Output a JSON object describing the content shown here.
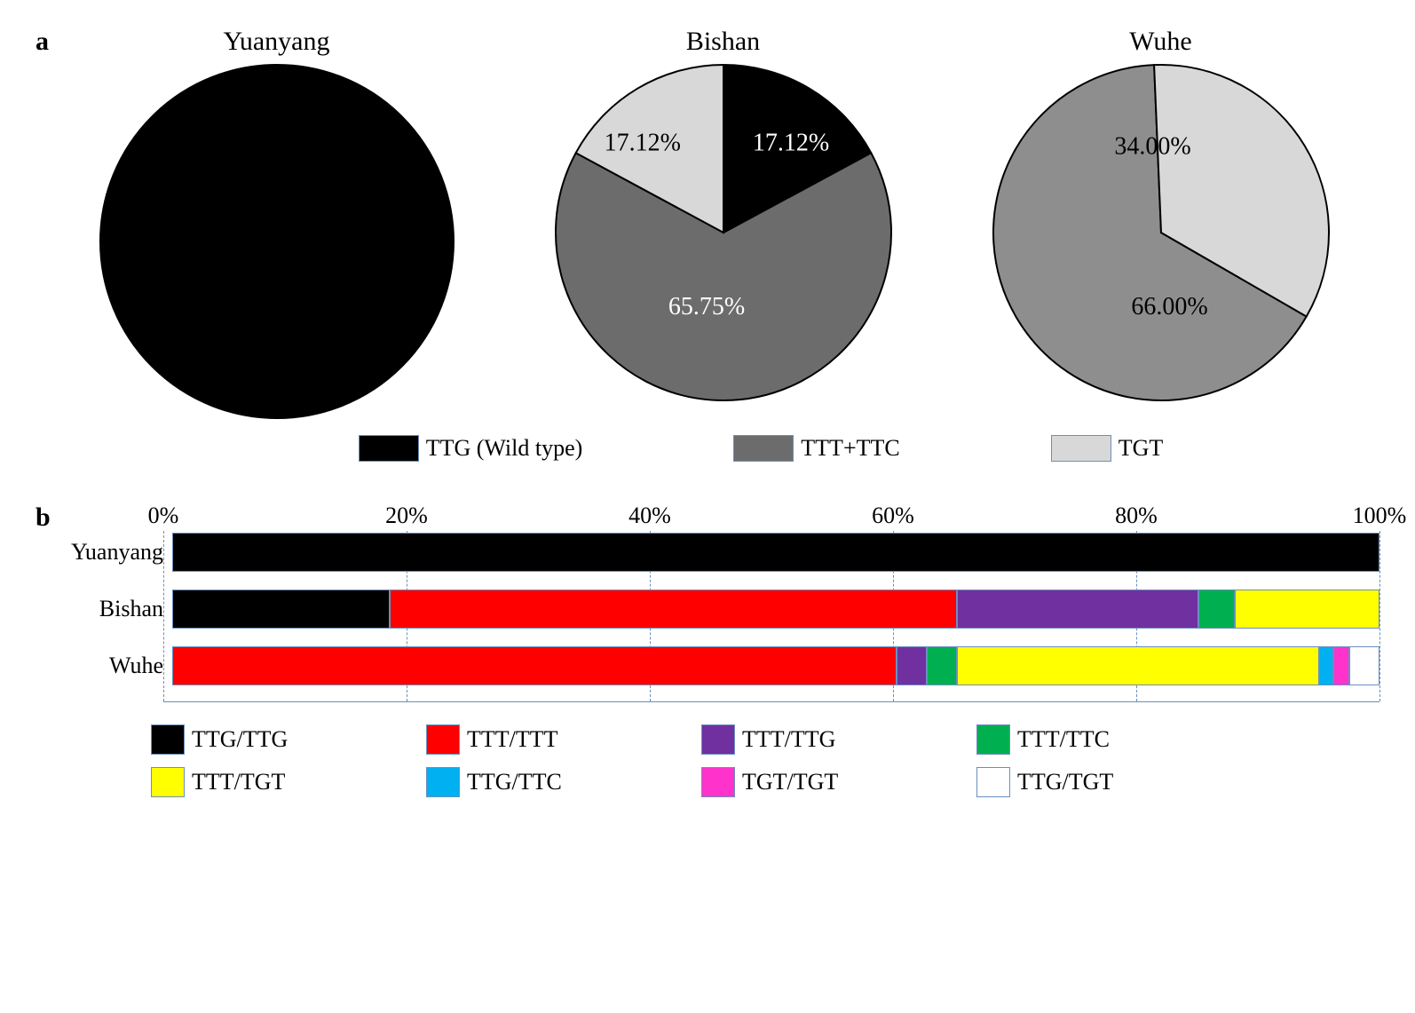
{
  "palette": {
    "stroke": "#6a8fbf"
  },
  "panelA": {
    "label": "a",
    "legend": [
      {
        "label": "TTG (Wild type)",
        "color": "#000000"
      },
      {
        "label": "TTT+TTC",
        "color": "#6c6c6c"
      },
      {
        "label": "TGT",
        "color": "#d8d8d8"
      }
    ],
    "pies": [
      {
        "title": "Yuanyang",
        "radius": 200,
        "slices": [
          {
            "value": 100,
            "color": "#000000",
            "label": null,
            "label_color": null
          }
        ]
      },
      {
        "title": "Bishan",
        "radius": 190,
        "slices": [
          {
            "value": 17.12,
            "color": "#000000",
            "label": "17.12%",
            "label_color": "#ffffff",
            "lx": 0.4,
            "ly": -0.52
          },
          {
            "value": 65.75,
            "color": "#6c6c6c",
            "label": "65.75%",
            "label_color": "#ffffff",
            "lx": -0.1,
            "ly": 0.45
          },
          {
            "value": 17.12,
            "color": "#d8d8d8",
            "label": "17.12%",
            "label_color": "#000000",
            "lx": -0.48,
            "ly": -0.52
          }
        ]
      },
      {
        "title": "Wuhe",
        "radius": 190,
        "slices": [
          {
            "value": 66.0,
            "color": "#8e8e8e",
            "label": "66.00%",
            "label_color": "#000000",
            "lx": 0.05,
            "ly": 0.45
          },
          {
            "value": 34.0,
            "color": "#d8d8d8",
            "label": "34.00%",
            "label_color": "#000000",
            "lx": -0.05,
            "ly": -0.5
          }
        ]
      }
    ],
    "startAngles": [
      -90,
      -90,
      30
    ],
    "label_fontsize": 28
  },
  "panelB": {
    "label": "b",
    "axis_ticks": [
      0,
      20,
      40,
      60,
      80,
      100
    ],
    "axis_suffix": "%",
    "tick_fontsize": 26,
    "grid_color": "#6a8fbf",
    "colors": {
      "TTG/TTG": "#000000",
      "TTT/TTT": "#ff0000",
      "TTT/TTG": "#7030a0",
      "TTT/TTC": "#00b050",
      "TTT/TGT": "#ffff00",
      "TTG/TTC": "#00b0f0",
      "TGT/TGT": "#ff33cc",
      "TTG/TGT": "#ffffff"
    },
    "legend_order": [
      "TTG/TTG",
      "TTT/TTT",
      "TTT/TTG",
      "TTT/TTC",
      "TTT/TGT",
      "TTG/TTC",
      "TGT/TGT",
      "TTG/TGT"
    ],
    "rows": [
      {
        "label": "Yuanyang",
        "segments": [
          {
            "key": "TTG/TTG",
            "value": 100
          }
        ]
      },
      {
        "label": "Bishan",
        "segments": [
          {
            "key": "TTG/TTG",
            "value": 18
          },
          {
            "key": "TTT/TTT",
            "value": 47
          },
          {
            "key": "TTT/TTG",
            "value": 20
          },
          {
            "key": "TTT/TTC",
            "value": 3
          },
          {
            "key": "TTT/TGT",
            "value": 12
          }
        ]
      },
      {
        "label": "Wuhe",
        "segments": [
          {
            "key": "TTT/TTT",
            "value": 60
          },
          {
            "key": "TTT/TTG",
            "value": 2.5
          },
          {
            "key": "TTT/TTC",
            "value": 2.5
          },
          {
            "key": "TTT/TGT",
            "value": 30
          },
          {
            "key": "TTG/TTC",
            "value": 1.2
          },
          {
            "key": "TGT/TGT",
            "value": 1.3
          },
          {
            "key": "TTG/TGT",
            "value": 2.5
          }
        ]
      }
    ]
  }
}
